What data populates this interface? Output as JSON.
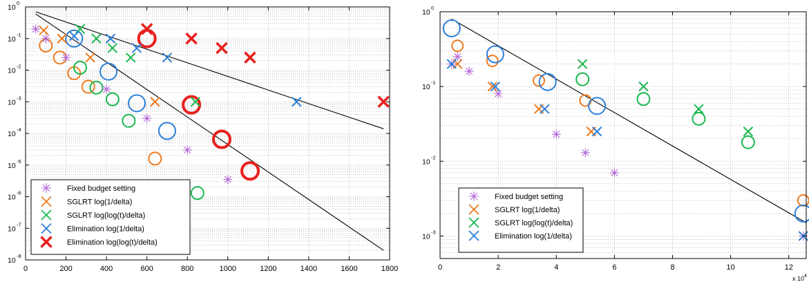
{
  "chart_data": [
    {
      "type": "scatter",
      "x_scale": "linear",
      "y_scale": "log",
      "xlim": [
        0,
        1800
      ],
      "ylim": [
        1e-08,
        1
      ],
      "x_ticks": [
        0,
        200,
        400,
        600,
        800,
        1000,
        1200,
        1400,
        1600,
        1800
      ],
      "x_tick_labels": [
        "0",
        "200",
        "400",
        "600",
        "800",
        "1000",
        "1200",
        "1400",
        "1600",
        "1800"
      ],
      "y_ticks": [
        1,
        0.1,
        0.01,
        0.001,
        0.0001,
        1e-05,
        1e-06,
        1e-07,
        1e-08
      ],
      "y_tick_labels": [
        {
          "base": "10",
          "exp": "0"
        },
        {
          "base": "10",
          "exp": "-1"
        },
        {
          "base": "10",
          "exp": "-2"
        },
        {
          "base": "10",
          "exp": "-3"
        },
        {
          "base": "10",
          "exp": "-4"
        },
        {
          "base": "10",
          "exp": "-5"
        },
        {
          "base": "10",
          "exp": "-6"
        },
        {
          "base": "10",
          "exp": "-7"
        },
        {
          "base": "10",
          "exp": "-8"
        }
      ],
      "grid": true,
      "legend_position": "bottom-left",
      "series": [
        {
          "name": "Fixed budget setting",
          "color": "#b267d6",
          "marker": "asterisk",
          "x": [
            50,
            100,
            200,
            400,
            600,
            800,
            1000
          ],
          "y": [
            0.2,
            0.1,
            0.025,
            0.0025,
            0.0003,
            3e-05,
            3.5e-06
          ]
        },
        {
          "name": "SGLRT log(1/delta)",
          "color": "#f07a20",
          "marker": "x",
          "x": [
            90,
            180,
            320,
            640
          ],
          "y": [
            0.18,
            0.1,
            0.025,
            0.001
          ]
        },
        {
          "name": "SGLRT log(log(t)/delta)",
          "color": "#19b84f",
          "marker": "x",
          "x": [
            270,
            350,
            430,
            520,
            840
          ],
          "y": [
            0.2,
            0.1,
            0.05,
            0.025,
            0.001
          ]
        },
        {
          "name": "Elimination log(1/delta)",
          "color": "#2d7fd8",
          "marker": "x",
          "x": [
            240,
            420,
            550,
            700,
            1340
          ],
          "y": [
            0.12,
            0.1,
            0.05,
            0.025,
            0.001
          ]
        },
        {
          "name": "Elimination log(log(t)/delta)",
          "color": "#e8201e",
          "marker": "x",
          "x": [
            600,
            820,
            970,
            1110,
            1770
          ],
          "y": [
            0.2,
            0.1,
            0.05,
            0.025,
            0.001
          ]
        }
      ],
      "circles": [
        {
          "color": "#f07a20",
          "size": 9,
          "x": [
            100,
            170,
            240,
            310,
            640
          ],
          "y": [
            0.06,
            0.025,
            0.008,
            0.003,
            1.6e-05
          ]
        },
        {
          "color": "#19b84f",
          "size": 9,
          "x": [
            270,
            350,
            430,
            510,
            850
          ],
          "y": [
            0.012,
            0.0028,
            0.0012,
            0.00025,
            1.3e-06
          ]
        },
        {
          "color": "#2d7fd8",
          "size": 12,
          "x": [
            240,
            410,
            550,
            700
          ],
          "y": [
            0.1,
            0.009,
            0.0009,
            0.00012
          ]
        },
        {
          "color": "#e8201e",
          "size": 12,
          "stroke": 4,
          "x": [
            600,
            820,
            970,
            1110
          ],
          "y": [
            0.1,
            0.0008,
            6.5e-05,
            6.5e-06
          ]
        }
      ],
      "lines": [
        {
          "color": "#000000",
          "x": [
            50,
            1770
          ],
          "y": [
            0.7,
            0.00014
          ]
        },
        {
          "color": "#000000",
          "x": [
            50,
            1770
          ],
          "y": [
            0.6,
            2e-08
          ]
        }
      ]
    },
    {
      "type": "scatter",
      "x_scale": "linear",
      "y_scale": "log",
      "xlim": [
        0,
        12.6
      ],
      "ylim": [
        0.0005,
        1
      ],
      "x_ticks": [
        0,
        2,
        4,
        6,
        8,
        10,
        12
      ],
      "x_tick_labels": [
        "0",
        "2",
        "4",
        "6",
        "8",
        "10",
        "12"
      ],
      "x_multiplier": {
        "base": "x 10",
        "exp": "4"
      },
      "y_ticks": [
        1,
        0.1,
        0.01,
        0.001
      ],
      "y_tick_labels": [
        {
          "base": "10",
          "exp": "0"
        },
        {
          "base": "10",
          "exp": "-1"
        },
        {
          "base": "10",
          "exp": "-2"
        },
        {
          "base": "10",
          "exp": "-3"
        }
      ],
      "grid": true,
      "legend_position": "bottom-left",
      "series": [
        {
          "name": "Fixed budget setting",
          "color": "#b267d6",
          "marker": "asterisk",
          "x": [
            0.4,
            0.6,
            1.0,
            2.0,
            4.0,
            5.0,
            6.0,
            12.5
          ],
          "y": [
            0.2,
            0.25,
            0.16,
            0.08,
            0.023,
            0.013,
            0.007,
            0.001
          ]
        },
        {
          "name": "SGLRT log(1/delta)",
          "color": "#f07a20",
          "marker": "x",
          "x": [
            0.6,
            1.8,
            3.4,
            5.2
          ],
          "y": [
            0.2,
            0.1,
            0.05,
            0.025
          ]
        },
        {
          "name": "SGLRT log(log(t)/delta)",
          "color": "#19b84f",
          "marker": "x",
          "x": [
            4.9,
            7.0,
            8.9,
            10.6
          ],
          "y": [
            0.2,
            0.1,
            0.05,
            0.025
          ]
        },
        {
          "name": "Elimination log(1/delta)",
          "color": "#2d7fd8",
          "marker": "x",
          "x": [
            0.4,
            1.9,
            3.6,
            5.4,
            12.5
          ],
          "y": [
            0.2,
            0.1,
            0.05,
            0.025,
            0.001
          ]
        }
      ],
      "circles": [
        {
          "color": "#f07a20",
          "size": 8,
          "x": [
            0.6,
            1.8,
            3.4,
            5.0,
            12.5
          ],
          "y": [
            0.35,
            0.22,
            0.12,
            0.065,
            0.003
          ]
        },
        {
          "color": "#19b84f",
          "size": 9,
          "x": [
            4.9,
            7.0,
            8.9,
            10.6
          ],
          "y": [
            0.125,
            0.068,
            0.037,
            0.018
          ]
        },
        {
          "color": "#2d7fd8",
          "size": 12,
          "x": [
            0.4,
            1.9,
            3.7,
            5.4,
            12.5
          ],
          "y": [
            0.6,
            0.27,
            0.115,
            0.055,
            0.002
          ]
        }
      ],
      "lines": [
        {
          "color": "#000000",
          "x": [
            0.4,
            12.6
          ],
          "y": [
            0.8,
            0.0015
          ]
        }
      ]
    }
  ]
}
